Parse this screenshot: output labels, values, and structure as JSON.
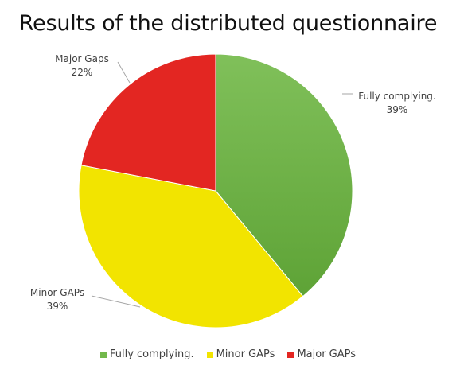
{
  "chart_data": {
    "type": "pie",
    "title": "Results of the distributed questionnaire",
    "slices": [
      {
        "legend_label": "Fully complying.",
        "data_label_name": "Fully complying.",
        "percent_label": "39%",
        "value": 39,
        "color": "#72b84b"
      },
      {
        "legend_label": "Minor GAPs",
        "data_label_name": "Minor GAPs",
        "percent_label": "39%",
        "value": 39,
        "color": "#f2e400"
      },
      {
        "legend_label": "Major GAPs",
        "data_label_name": "Major Gaps",
        "percent_label": "22%",
        "value": 22,
        "color": "#e32622"
      }
    ],
    "legend_position": "bottom"
  }
}
